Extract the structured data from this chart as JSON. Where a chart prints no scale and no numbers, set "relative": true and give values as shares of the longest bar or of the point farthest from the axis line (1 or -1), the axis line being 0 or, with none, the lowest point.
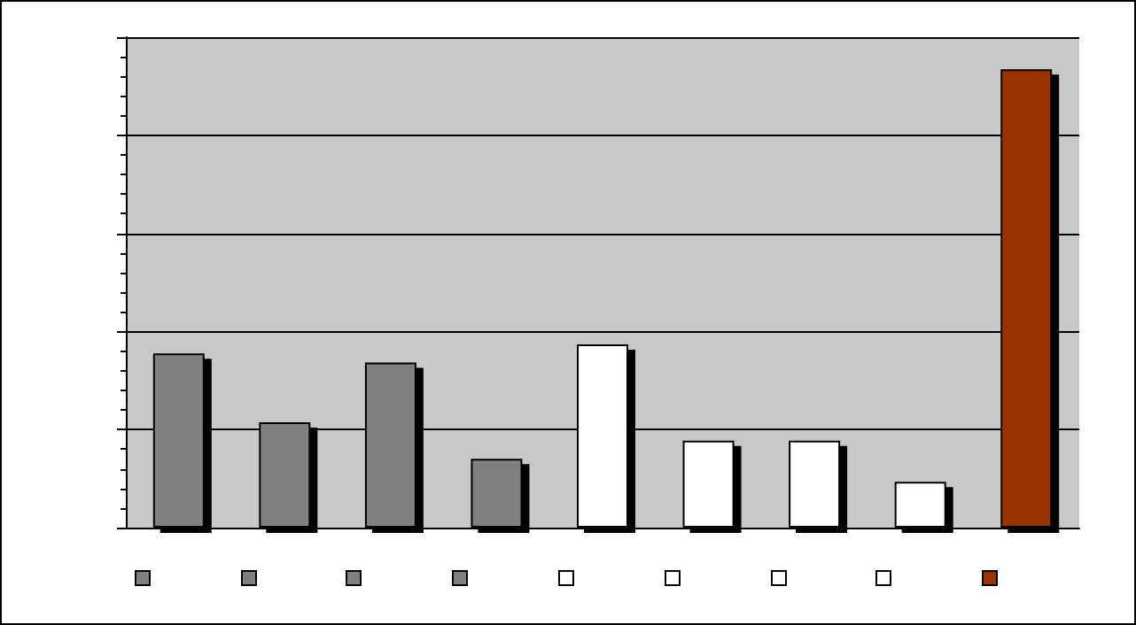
{
  "chart_data": {
    "type": "bar",
    "relative": true,
    "categories": [
      null,
      null,
      null,
      null,
      null,
      null,
      null,
      null,
      null
    ],
    "values": [
      0.38,
      0.23,
      0.36,
      0.15,
      0.4,
      0.19,
      0.19,
      0.1,
      1
    ],
    "colors": [
      "#808080",
      "#808080",
      "#808080",
      "#808080",
      "#ffffff",
      "#ffffff",
      "#ffffff",
      "#ffffff",
      "#993300"
    ],
    "grid": "y"
  }
}
